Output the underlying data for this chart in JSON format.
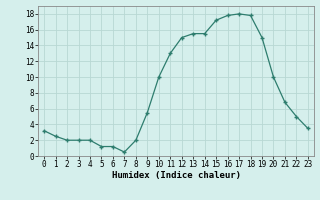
{
  "x": [
    0,
    1,
    2,
    3,
    4,
    5,
    6,
    7,
    8,
    9,
    10,
    11,
    12,
    13,
    14,
    15,
    16,
    17,
    18,
    19,
    20,
    21,
    22,
    23
  ],
  "y": [
    3.2,
    2.5,
    2.0,
    2.0,
    2.0,
    1.2,
    1.2,
    0.5,
    2.0,
    5.5,
    10.0,
    13.0,
    15.0,
    15.5,
    15.5,
    17.2,
    17.8,
    18.0,
    17.8,
    15.0,
    10.0,
    6.8,
    5.0,
    3.5
  ],
  "xlabel": "Humidex (Indice chaleur)",
  "xlim": [
    -0.5,
    23.5
  ],
  "ylim": [
    0,
    19
  ],
  "yticks": [
    0,
    2,
    4,
    6,
    8,
    10,
    12,
    14,
    16,
    18
  ],
  "xticks": [
    0,
    1,
    2,
    3,
    4,
    5,
    6,
    7,
    8,
    9,
    10,
    11,
    12,
    13,
    14,
    15,
    16,
    17,
    18,
    19,
    20,
    21,
    22,
    23
  ],
  "line_color": "#2e7d6e",
  "bg_color": "#d5efec",
  "grid_color": "#b8d8d4",
  "xlabel_fontsize": 6.5,
  "tick_fontsize": 5.5
}
